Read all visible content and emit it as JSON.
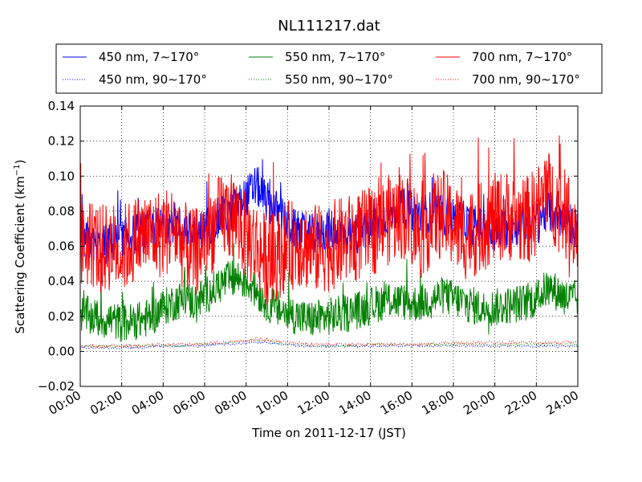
{
  "chart_data": {
    "type": "line",
    "title": "NL111217.dat",
    "xlabel": "Time on 2011-12-17 (JST)",
    "ylabel_main": "Scattering Coefficient (km",
    "ylabel_sup": "−1",
    "ylabel_close": ")",
    "xlim": [
      0,
      24
    ],
    "ylim": [
      -0.02,
      0.14
    ],
    "grid": true,
    "legend_position": "top",
    "x_ticks": [
      {
        "v": 0,
        "label": "00:00"
      },
      {
        "v": 2,
        "label": "02:00"
      },
      {
        "v": 4,
        "label": "04:00"
      },
      {
        "v": 6,
        "label": "06:00"
      },
      {
        "v": 8,
        "label": "08:00"
      },
      {
        "v": 10,
        "label": "10:00"
      },
      {
        "v": 12,
        "label": "12:00"
      },
      {
        "v": 14,
        "label": "14:00"
      },
      {
        "v": 16,
        "label": "16:00"
      },
      {
        "v": 18,
        "label": "18:00"
      },
      {
        "v": 20,
        "label": "20:00"
      },
      {
        "v": 22,
        "label": "22:00"
      },
      {
        "v": 24,
        "label": "24:00"
      }
    ],
    "y_ticks": [
      {
        "v": -0.02,
        "label": "−0.02"
      },
      {
        "v": 0.0,
        "label": "0.00"
      },
      {
        "v": 0.02,
        "label": "0.02"
      },
      {
        "v": 0.04,
        "label": "0.04"
      },
      {
        "v": 0.06,
        "label": "0.06"
      },
      {
        "v": 0.08,
        "label": "0.08"
      },
      {
        "v": 0.1,
        "label": "0.10"
      },
      {
        "v": 0.12,
        "label": "0.12"
      },
      {
        "v": 0.14,
        "label": "0.14"
      }
    ],
    "x": [
      0,
      0.5,
      1,
      1.5,
      2,
      2.5,
      3,
      3.5,
      4,
      4.5,
      5,
      5.5,
      6,
      6.5,
      7,
      7.5,
      8,
      8.5,
      9,
      9.5,
      10,
      10.5,
      11,
      11.5,
      12,
      12.5,
      13,
      13.5,
      14,
      14.5,
      15,
      15.5,
      16,
      16.5,
      17,
      17.5,
      18,
      18.5,
      19,
      19.5,
      20,
      20.5,
      21,
      21.5,
      22,
      22.5,
      23,
      23.5,
      24
    ],
    "series": [
      {
        "name": "450 nm, 7∼170°",
        "color": "#0000ff",
        "dash": "solid",
        "jitter": 0.012,
        "values": [
          0.065,
          0.062,
          0.06,
          0.062,
          0.064,
          0.066,
          0.068,
          0.07,
          0.072,
          0.074,
          0.07,
          0.066,
          0.07,
          0.074,
          0.078,
          0.082,
          0.088,
          0.095,
          0.085,
          0.08,
          0.072,
          0.068,
          0.066,
          0.068,
          0.07,
          0.068,
          0.066,
          0.068,
          0.07,
          0.075,
          0.08,
          0.082,
          0.08,
          0.078,
          0.08,
          0.078,
          0.076,
          0.074,
          0.072,
          0.07,
          0.068,
          0.07,
          0.072,
          0.074,
          0.076,
          0.08,
          0.078,
          0.074,
          0.07
        ]
      },
      {
        "name": "550 nm, 7∼170°",
        "color": "#008000",
        "dash": "solid",
        "jitter": 0.011,
        "values": [
          0.022,
          0.02,
          0.018,
          0.018,
          0.016,
          0.017,
          0.018,
          0.02,
          0.025,
          0.028,
          0.03,
          0.028,
          0.032,
          0.036,
          0.04,
          0.042,
          0.04,
          0.035,
          0.028,
          0.024,
          0.022,
          0.02,
          0.018,
          0.019,
          0.02,
          0.021,
          0.022,
          0.024,
          0.026,
          0.028,
          0.03,
          0.028,
          0.027,
          0.028,
          0.03,
          0.032,
          0.03,
          0.028,
          0.026,
          0.024,
          0.025,
          0.026,
          0.027,
          0.028,
          0.03,
          0.036,
          0.034,
          0.03,
          0.03
        ]
      },
      {
        "name": "700 nm, 7∼170°",
        "color": "#ff0000",
        "dash": "solid",
        "jitter": 0.026,
        "values": [
          0.06,
          0.062,
          0.058,
          0.06,
          0.058,
          0.062,
          0.066,
          0.066,
          0.068,
          0.07,
          0.06,
          0.055,
          0.066,
          0.072,
          0.078,
          0.076,
          0.066,
          0.06,
          0.052,
          0.055,
          0.06,
          0.062,
          0.06,
          0.058,
          0.06,
          0.062,
          0.064,
          0.066,
          0.068,
          0.072,
          0.076,
          0.078,
          0.074,
          0.066,
          0.076,
          0.078,
          0.072,
          0.066,
          0.068,
          0.072,
          0.076,
          0.078,
          0.076,
          0.074,
          0.08,
          0.09,
          0.084,
          0.076,
          0.07
        ]
      },
      {
        "name": "450 nm, 90∼170°",
        "color": "#0000ff",
        "dash": "dotted",
        "jitter": 0.0006,
        "values": [
          0.002,
          0.002,
          0.002,
          0.002,
          0.002,
          0.002,
          0.002,
          0.003,
          0.003,
          0.003,
          0.003,
          0.003,
          0.003,
          0.004,
          0.004,
          0.004,
          0.005,
          0.005,
          0.005,
          0.004,
          0.004,
          0.003,
          0.003,
          0.003,
          0.003,
          0.003,
          0.003,
          0.003,
          0.003,
          0.003,
          0.003,
          0.003,
          0.003,
          0.003,
          0.003,
          0.003,
          0.003,
          0.003,
          0.003,
          0.003,
          0.003,
          0.003,
          0.003,
          0.003,
          0.003,
          0.003,
          0.003,
          0.003,
          0.003
        ]
      },
      {
        "name": "550 nm, 90∼170°",
        "color": "#008000",
        "dash": "dotted",
        "jitter": 0.0006,
        "values": [
          0.003,
          0.003,
          0.003,
          0.003,
          0.003,
          0.003,
          0.003,
          0.003,
          0.003,
          0.003,
          0.003,
          0.004,
          0.004,
          0.004,
          0.005,
          0.005,
          0.006,
          0.006,
          0.006,
          0.005,
          0.004,
          0.004,
          0.004,
          0.003,
          0.003,
          0.003,
          0.003,
          0.003,
          0.004,
          0.004,
          0.004,
          0.004,
          0.004,
          0.004,
          0.004,
          0.004,
          0.004,
          0.004,
          0.004,
          0.004,
          0.004,
          0.004,
          0.004,
          0.004,
          0.004,
          0.004,
          0.004,
          0.004,
          0.004
        ]
      },
      {
        "name": "700 nm, 90∼170°",
        "color": "#ff0000",
        "dash": "dotted",
        "jitter": 0.0008,
        "values": [
          0.003,
          0.003,
          0.003,
          0.003,
          0.003,
          0.003,
          0.003,
          0.004,
          0.004,
          0.004,
          0.004,
          0.004,
          0.004,
          0.005,
          0.005,
          0.006,
          0.006,
          0.007,
          0.007,
          0.006,
          0.005,
          0.005,
          0.004,
          0.004,
          0.004,
          0.004,
          0.004,
          0.004,
          0.004,
          0.004,
          0.004,
          0.004,
          0.004,
          0.004,
          0.004,
          0.005,
          0.005,
          0.005,
          0.005,
          0.005,
          0.005,
          0.005,
          0.005,
          0.005,
          0.005,
          0.005,
          0.005,
          0.005,
          0.005
        ]
      }
    ]
  }
}
